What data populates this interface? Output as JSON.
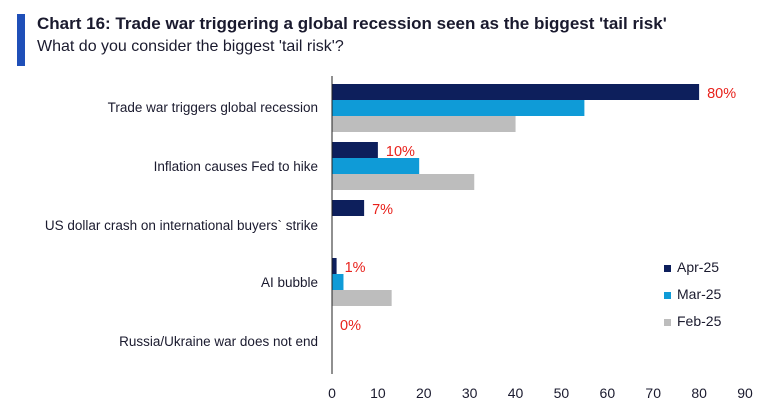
{
  "header": {
    "title": "Chart 16: Trade war triggering a global recession seen as the biggest 'tail risk'",
    "subtitle": "What do you consider the biggest 'tail risk'?"
  },
  "colors": {
    "accent": "#1f4fb8",
    "apr": "#0d1f5c",
    "mar": "#0f9bd7",
    "feb": "#bdbdbd",
    "label": "#e8211b",
    "text": "#1a1a2e"
  },
  "chart_data": {
    "type": "bar",
    "orientation": "horizontal",
    "title": "Chart 16: Trade war triggering a global recession seen as the biggest 'tail risk'",
    "subtitle": "What do you consider the biggest 'tail risk'?",
    "categories": [
      "Trade war triggers global recession",
      "Inflation causes Fed to hike",
      "US dollar crash on international buyers` strike",
      "AI bubble",
      "Russia/Ukraine war does not end"
    ],
    "series": [
      {
        "name": "Apr-25",
        "values": [
          80,
          10,
          7,
          1,
          0
        ]
      },
      {
        "name": "Mar-25",
        "values": [
          55,
          19,
          0,
          2.5,
          0
        ]
      },
      {
        "name": "Feb-25",
        "values": [
          40,
          31,
          0,
          13,
          0
        ]
      }
    ],
    "data_labels": [
      "80%",
      "10%",
      "7%",
      "1%",
      "0%"
    ],
    "xlim": [
      0,
      90
    ],
    "xticks": [
      0,
      10,
      20,
      30,
      40,
      50,
      60,
      70,
      80,
      90
    ],
    "legend_position": "bottom-right",
    "grid": false
  }
}
